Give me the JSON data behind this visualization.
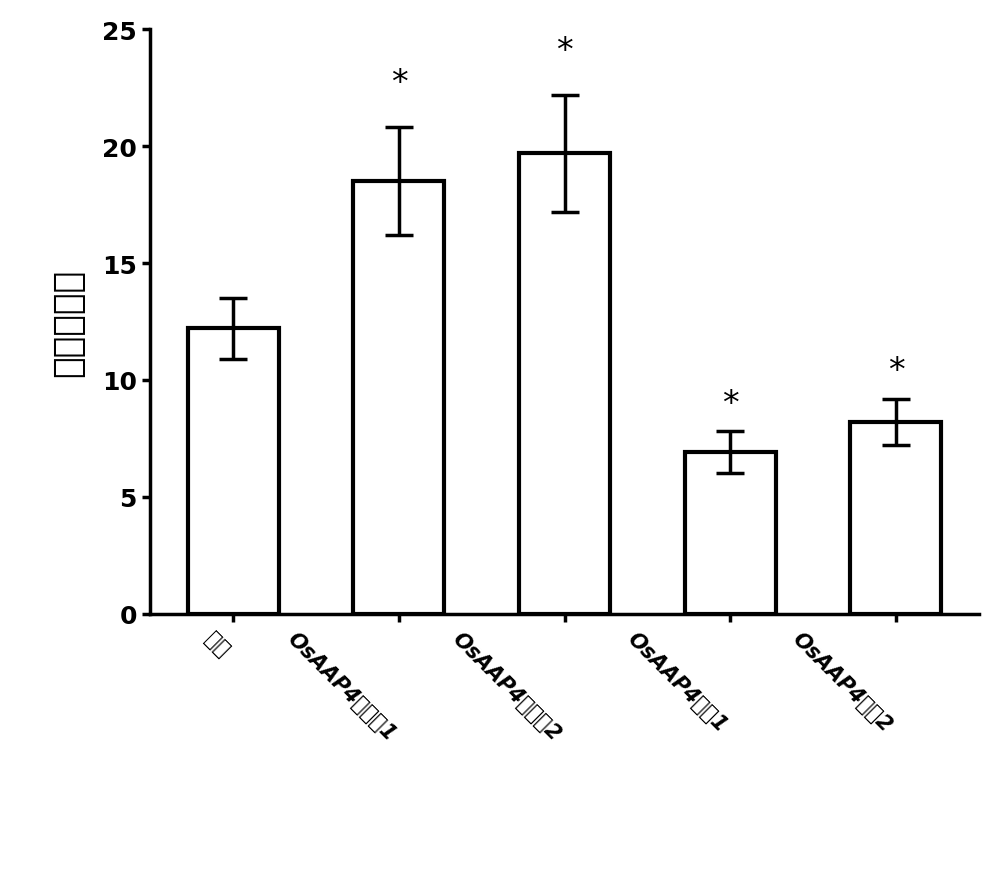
{
  "categories": [
    "对照",
    "OsAAP4超表达1",
    "OsAAP4超表达2",
    "OsAAP4干扰1",
    "OsAAP4干扰2"
  ],
  "values": [
    12.2,
    18.5,
    19.7,
    6.9,
    8.2
  ],
  "errors": [
    1.3,
    2.3,
    2.5,
    0.9,
    1.0
  ],
  "bar_color": "#ffffff",
  "bar_edgecolor": "#000000",
  "bar_linewidth": 3.0,
  "errorbar_color": "#000000",
  "errorbar_linewidth": 2.5,
  "errorbar_capsize": 10,
  "errorbar_capthick": 2.5,
  "star_indices": [
    1,
    2,
    3,
    4
  ],
  "star_offsets": [
    1.2,
    1.2,
    0.5,
    0.5
  ],
  "ylabel": "水稻分蘖数",
  "ylim": [
    0,
    25
  ],
  "yticks": [
    0,
    5,
    10,
    15,
    20,
    25
  ],
  "bar_width": 0.55,
  "background_color": "#ffffff",
  "ylabel_fontsize": 26,
  "tick_fontsize": 18,
  "star_fontsize": 24,
  "xticklabel_fontsize": 15
}
